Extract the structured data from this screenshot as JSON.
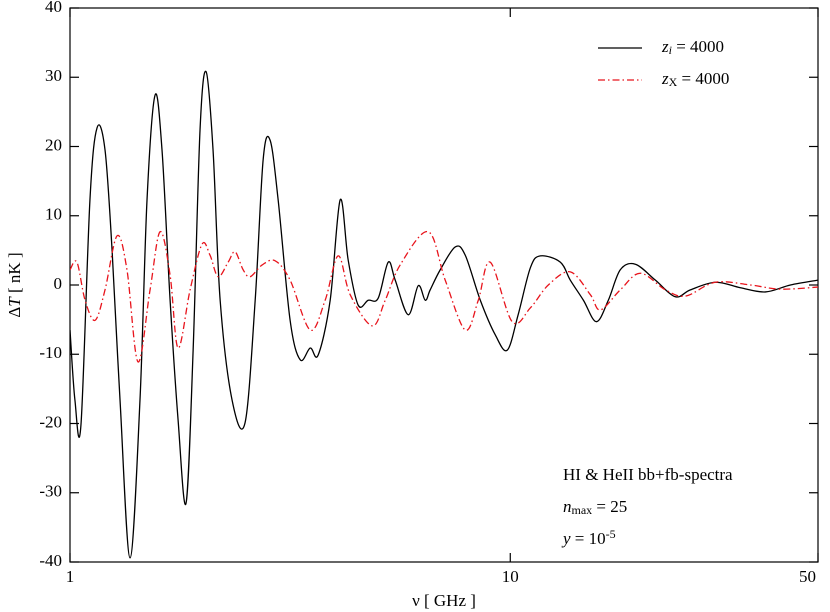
{
  "chart_data": {
    "type": "line",
    "ylabel": "ΔT [ nK ]",
    "xlabel": "ν [ GHz ]",
    "xscale": "log",
    "xlim": [
      1,
      50
    ],
    "xticks": [
      1,
      10,
      50
    ],
    "ylim": [
      -40,
      40
    ],
    "yticks": [
      -40,
      -30,
      -20,
      -10,
      0,
      10,
      20,
      30,
      40
    ],
    "legend": "upper right",
    "annotations": [
      "HI & HeII bb+fb-spectra",
      "nmax = 25",
      "y = 10-5"
    ],
    "series": [
      {
        "name": "zi = 4000",
        "color": "#000000",
        "style": "solid",
        "x": [
          1.0,
          1.026,
          1.059,
          1.11,
          1.152,
          1.201,
          1.246,
          1.299,
          1.369,
          1.442,
          1.496,
          1.56,
          1.618,
          1.688,
          1.76,
          1.835,
          1.904,
          1.974,
          2.038,
          2.113,
          2.193,
          2.334,
          2.498,
          2.634,
          2.746,
          2.848,
          2.97,
          3.162,
          3.333,
          3.513,
          3.662,
          3.899,
          4.109,
          4.284,
          4.513,
          4.757,
          5.012,
          5.282,
          5.479,
          5.864,
          6.18,
          6.41,
          6.579,
          6.934,
          7.499,
          7.903,
          8.55,
          9.245,
          9.845,
          10.42,
          11.11,
          11.7,
          12.99,
          13.69,
          14.66,
          15.69,
          16.7,
          17.78,
          19.23,
          21.36,
          23.71,
          25.65,
          29.24,
          33.33,
          37.98,
          43.29,
          50
        ],
        "values": [
          -6.5,
          -16.6,
          -20.2,
          12.3,
          22.7,
          19.5,
          5.1,
          -16.6,
          -39.4,
          -16.6,
          12.3,
          27.4,
          19.5,
          -2.2,
          -19.5,
          -31.5,
          -9.4,
          22.4,
          30.8,
          19.5,
          -2.2,
          -16.6,
          -19.9,
          -2.2,
          18.1,
          20.9,
          12.3,
          -5.1,
          -10.8,
          -9.1,
          -10.1,
          -2.2,
          12.3,
          3.6,
          -2.9,
          -2.2,
          -1.9,
          3.3,
          0.7,
          -4.3,
          -0.1,
          -2.2,
          -0.7,
          2.2,
          5.5,
          4.3,
          -2.2,
          -7.2,
          -9.4,
          -4.3,
          2.5,
          4.2,
          3.3,
          0.7,
          -2.2,
          -5.3,
          -2.2,
          2.2,
          3.0,
          0.7,
          -1.7,
          -0.7,
          0.4,
          -0.4,
          -1.0,
          0,
          0.7
        ]
      },
      {
        "name": "zX = 4000",
        "color": "#e8141c",
        "style": "dashdot",
        "x": [
          1.0,
          1.037,
          1.082,
          1.14,
          1.201,
          1.279,
          1.347,
          1.427,
          1.52,
          1.602,
          1.688,
          1.76,
          1.874,
          1.995,
          2.08,
          2.17,
          2.287,
          2.371,
          2.473,
          2.566,
          2.732,
          2.924,
          3.162,
          3.513,
          3.798,
          4.066,
          4.329,
          4.858,
          5.2,
          5.623,
          6.511,
          7.116,
          7.903,
          8.46,
          9.006,
          10.1,
          11.11,
          12.2,
          13.69,
          15.2,
          16.02,
          17.78,
          19.74,
          22.51,
          25.0,
          29.24,
          35.13,
          41.09,
          50
        ],
        "values": [
          2.2,
          3.3,
          -2.2,
          -5.1,
          -0.7,
          7.1,
          2.2,
          -11.1,
          -0.7,
          7.7,
          1.4,
          -9.1,
          -0.7,
          5.9,
          4.3,
          1.2,
          3.3,
          4.8,
          2.2,
          1.2,
          2.9,
          3.5,
          0.7,
          -6.5,
          -2.2,
          4.2,
          -1.4,
          -5.9,
          -2.2,
          2.9,
          7.7,
          0.7,
          -6.5,
          -2.2,
          3.3,
          -5.3,
          -3.3,
          0,
          1.9,
          -1.4,
          -3.6,
          -0.7,
          1.7,
          -0.7,
          -1.6,
          0.4,
          0,
          -0.6,
          -0.3
        ]
      }
    ]
  }
}
